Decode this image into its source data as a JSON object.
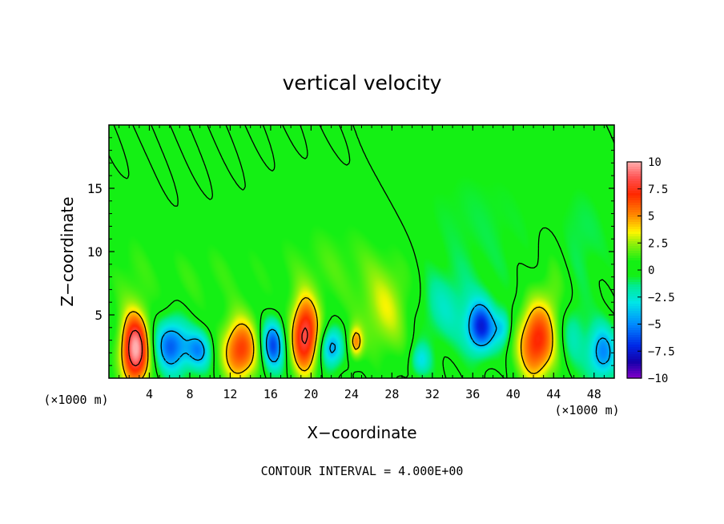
{
  "chart_data": {
    "type": "heatmap",
    "title": "vertical velocity",
    "xlabel": "X−coordinate",
    "ylabel": "Z−coordinate",
    "x_unit_label": "(×1000 m)",
    "y_unit_label": "(×1000 m)",
    "footer": "CONTOUR INTERVAL = 4.000E+00",
    "xlim": [
      0,
      50
    ],
    "ylim": [
      0,
      20
    ],
    "x_ticks": [
      "4",
      "8",
      "12",
      "16",
      "20",
      "24",
      "28",
      "32",
      "36",
      "40",
      "44",
      "48"
    ],
    "y_ticks": [
      "5",
      "10",
      "15"
    ],
    "colorbar": {
      "range": [
        -10,
        10
      ],
      "tick_labels": [
        "10",
        "7.5",
        "5",
        "2.5",
        "0",
        "−2.5",
        "−5",
        "−7.5",
        "−10"
      ],
      "tick_values": [
        10,
        7.5,
        5,
        2.5,
        0,
        -2.5,
        -5,
        -7.5,
        -10
      ]
    },
    "features": [
      {
        "x": 2.6,
        "z": 2.2,
        "w": 10,
        "sx": 1.0,
        "sz": 2.0
      },
      {
        "x": 6.2,
        "z": 2.6,
        "w": -6,
        "sx": 1.2,
        "sz": 1.5
      },
      {
        "x": 8.9,
        "z": 2.2,
        "w": -4.5,
        "sx": 0.9,
        "sz": 1.1
      },
      {
        "x": 13.0,
        "z": 2.2,
        "w": 6.8,
        "sx": 1.3,
        "sz": 1.8
      },
      {
        "x": 16.2,
        "z": 2.6,
        "w": -6.5,
        "sx": 0.8,
        "sz": 1.4
      },
      {
        "x": 19.4,
        "z": 3.3,
        "w": 8.5,
        "sx": 1.0,
        "sz": 2.1
      },
      {
        "x": 22.0,
        "z": 2.4,
        "w": -5,
        "sx": 0.8,
        "sz": 1.1
      },
      {
        "x": 24.4,
        "z": 2.8,
        "w": 4.5,
        "sx": 0.5,
        "sz": 0.9
      },
      {
        "x": 27.5,
        "z": 5.2,
        "w": 2.8,
        "sx": 1.8,
        "sz": 2.6
      },
      {
        "x": 30.8,
        "z": 1.4,
        "w": -3,
        "sx": 0.7,
        "sz": 0.9
      },
      {
        "x": 33.2,
        "z": 5.5,
        "w": -2,
        "sx": 2.0,
        "sz": 2.0
      },
      {
        "x": 36.8,
        "z": 4.0,
        "w": -7,
        "sx": 1.0,
        "sz": 1.4
      },
      {
        "x": 39.0,
        "z": 4.0,
        "w": -3,
        "sx": 0.6,
        "sz": 1.0
      },
      {
        "x": 42.2,
        "z": 2.8,
        "w": 7,
        "sx": 1.3,
        "sz": 2.2
      },
      {
        "x": 44.0,
        "z": 6.5,
        "w": 1.8,
        "sx": 1.2,
        "sz": 3.5
      },
      {
        "x": 45.8,
        "z": 3.5,
        "w": -2.2,
        "sx": 1.0,
        "sz": 1.8
      },
      {
        "x": 48.8,
        "z": 2.0,
        "w": -5,
        "sx": 1.0,
        "sz": 1.5
      },
      {
        "x": 22.5,
        "z": 9.0,
        "w": 1.3,
        "sx": 5.0,
        "sz": 3.0
      },
      {
        "x": 9.0,
        "z": 8.0,
        "w": 1.0,
        "sx": 4.0,
        "sz": 2.5
      },
      {
        "x": 2.0,
        "z": 8.0,
        "w": 1.0,
        "sx": 1.5,
        "sz": 3.0
      },
      {
        "x": 36.0,
        "z": 12.0,
        "w": -0.8,
        "sx": 5.0,
        "sz": 4.0
      },
      {
        "x": 46.5,
        "z": 11.0,
        "w": -1.0,
        "sx": 2.0,
        "sz": 3.0
      }
    ]
  }
}
